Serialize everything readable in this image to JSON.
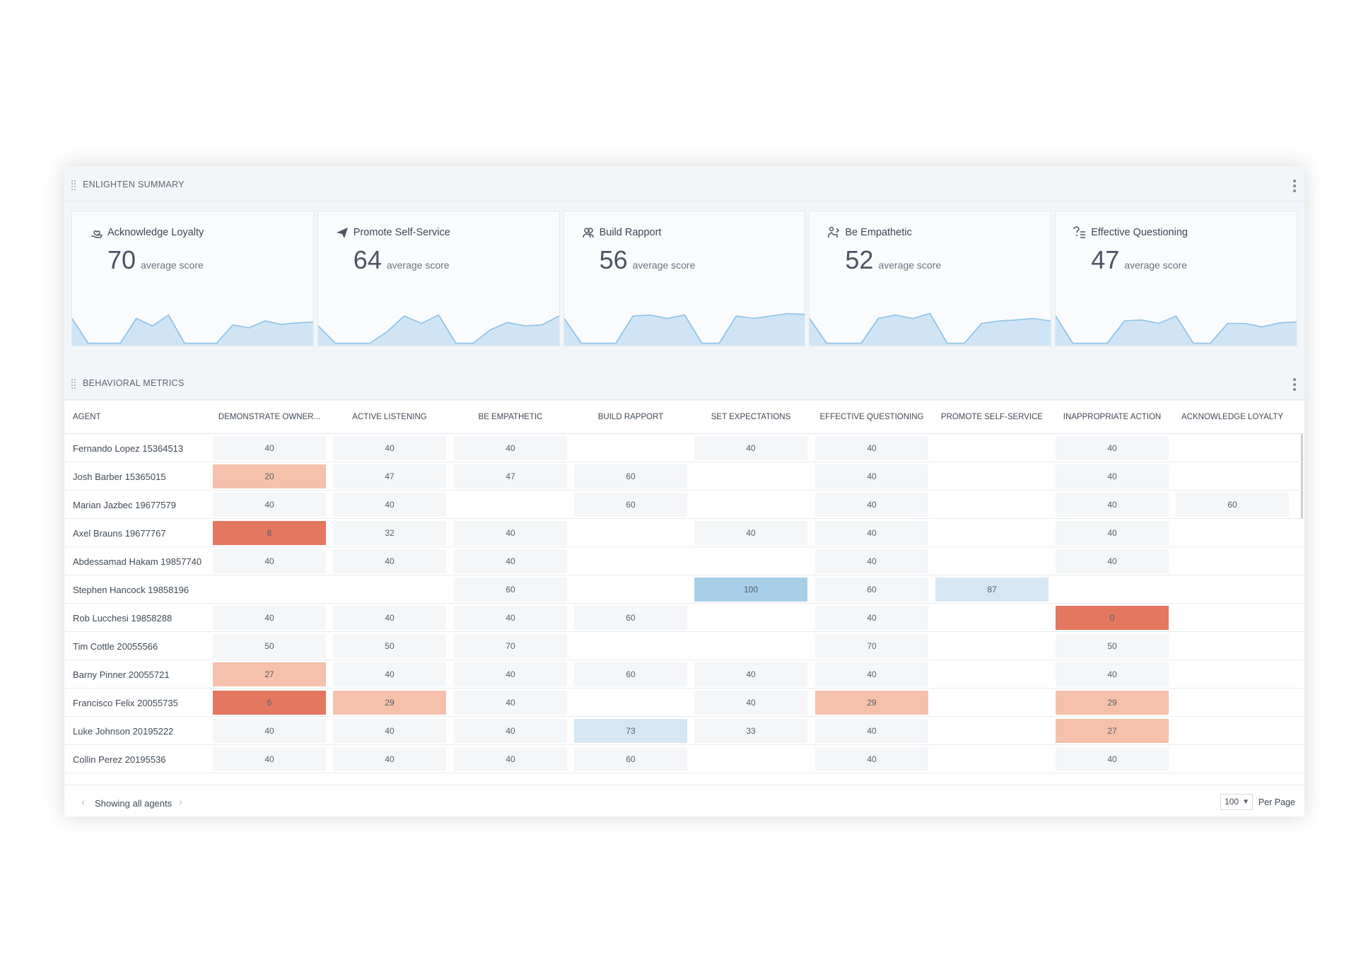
{
  "summary": {
    "title": "ENLIGHTEN SUMMARY",
    "cards": [
      {
        "title": "Acknowledge Loyalty",
        "score": "70",
        "score_label": "average score",
        "icon": "hand-heart-icon",
        "trend": [
          0.55,
          0.05,
          0.05,
          0.05,
          0.55,
          0.4,
          0.62,
          0.05,
          0.05,
          0.05,
          0.42,
          0.36,
          0.5,
          0.43,
          0.46,
          0.48
        ]
      },
      {
        "title": "Promote Self-Service",
        "score": "64",
        "score_label": "average score",
        "icon": "paper-plane-icon",
        "trend": [
          0.4,
          0.05,
          0.05,
          0.05,
          0.28,
          0.6,
          0.45,
          0.62,
          0.05,
          0.05,
          0.32,
          0.47,
          0.4,
          0.42,
          0.6
        ]
      },
      {
        "title": "Build Rapport",
        "score": "56",
        "score_label": "average score",
        "icon": "people-icon",
        "trend": [
          0.55,
          0.05,
          0.05,
          0.05,
          0.6,
          0.62,
          0.55,
          0.62,
          0.05,
          0.05,
          0.6,
          0.55,
          0.6,
          0.65,
          0.63
        ]
      },
      {
        "title": "Be Empathetic",
        "score": "52",
        "score_label": "average score",
        "icon": "empathy-icon",
        "trend": [
          0.55,
          0.05,
          0.05,
          0.05,
          0.55,
          0.62,
          0.55,
          0.65,
          0.05,
          0.05,
          0.45,
          0.5,
          0.52,
          0.55,
          0.5
        ]
      },
      {
        "title": "Effective Questioning",
        "score": "47",
        "score_label": "average score",
        "icon": "question-list-icon",
        "trend": [
          0.6,
          0.05,
          0.05,
          0.05,
          0.5,
          0.52,
          0.45,
          0.6,
          0.05,
          0.05,
          0.45,
          0.45,
          0.38,
          0.46,
          0.48
        ]
      }
    ]
  },
  "metrics": {
    "title": "BEHAVIORAL METRICS",
    "agent_header": "AGENT",
    "columns": [
      "DEMONSTRATE OWNER...",
      "ACTIVE LISTENING",
      "BE EMPATHETIC",
      "BUILD RAPPORT",
      "SET EXPECTATIONS",
      "EFFECTIVE QUESTIONING",
      "PROMOTE SELF-SERVICE",
      "INAPPROPRIATE ACTION",
      "ACKNOWLEDGE LOYALTY"
    ],
    "rows": [
      {
        "agent": "Fernando Lopez 15364513",
        "values": [
          "40",
          "40",
          "40",
          "",
          "40",
          "40",
          "",
          "40",
          ""
        ]
      },
      {
        "agent": "Josh Barber 15365015",
        "values": [
          "20",
          "47",
          "47",
          "60",
          "",
          "40",
          "",
          "40",
          ""
        ]
      },
      {
        "agent": "Marian Jazbec 19677579",
        "values": [
          "40",
          "40",
          "",
          "60",
          "",
          "40",
          "",
          "40",
          "60"
        ]
      },
      {
        "agent": "Axel Brauns 19677767",
        "values": [
          "8",
          "32",
          "40",
          "",
          "40",
          "40",
          "",
          "40",
          ""
        ]
      },
      {
        "agent": "Abdessamad Hakam 19857740",
        "values": [
          "40",
          "40",
          "40",
          "",
          "",
          "40",
          "",
          "40",
          ""
        ]
      },
      {
        "agent": "Stephen Hancock 19858196",
        "values": [
          "",
          "",
          "60",
          "",
          "100",
          "60",
          "87",
          "",
          ""
        ]
      },
      {
        "agent": "Rob Lucchesi 19858288",
        "values": [
          "40",
          "40",
          "40",
          "60",
          "",
          "40",
          "",
          "0",
          ""
        ]
      },
      {
        "agent": "Tim Cottle 20055566",
        "values": [
          "50",
          "50",
          "70",
          "",
          "",
          "70",
          "",
          "50",
          ""
        ]
      },
      {
        "agent": "Barny Pinner 20055721",
        "values": [
          "27",
          "40",
          "40",
          "60",
          "40",
          "40",
          "",
          "40",
          ""
        ]
      },
      {
        "agent": "Francisco Felix 20055735",
        "values": [
          "6",
          "29",
          "40",
          "",
          "40",
          "29",
          "",
          "29",
          ""
        ]
      },
      {
        "agent": "Luke Johnson 20195222",
        "values": [
          "40",
          "40",
          "40",
          "73",
          "33",
          "40",
          "",
          "27",
          ""
        ]
      },
      {
        "agent": "Collin Perez 20195536",
        "values": [
          "40",
          "40",
          "40",
          "60",
          "",
          "40",
          "",
          "40",
          ""
        ]
      }
    ],
    "colors": {
      "neutral": "#f4f6f8",
      "very_low": "#e37760",
      "low": "#f5c1ac",
      "high": "#d6e7f3",
      "very_high": "#a9cfe8",
      "spark_line": "#8dc3e8",
      "spark_fill": "#cfe5f5"
    }
  },
  "footer": {
    "pager_text": "Showing all agents",
    "per_page_value": "100",
    "per_page_label": "Per Page"
  }
}
